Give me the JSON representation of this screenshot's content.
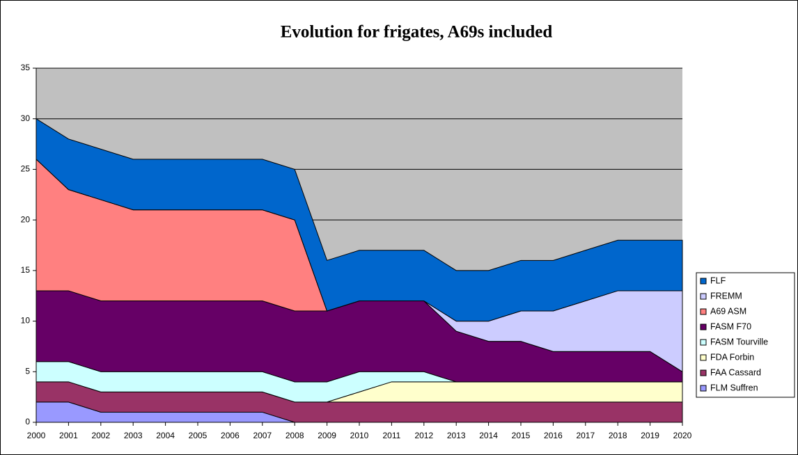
{
  "chart_data": {
    "type": "stacked_area",
    "title": "Evolution for frigates, A69s included",
    "categories": [
      "2000",
      "2001",
      "2002",
      "2003",
      "2004",
      "2005",
      "2006",
      "2007",
      "2008",
      "2009",
      "2010",
      "2011",
      "2012",
      "2013",
      "2014",
      "2015",
      "2016",
      "2017",
      "2018",
      "2019",
      "2020"
    ],
    "series": [
      {
        "name": "FLM Suffren",
        "color": "#9999ff",
        "values": [
          2,
          2,
          1,
          1,
          1,
          1,
          1,
          1,
          0,
          0,
          0,
          0,
          0,
          0,
          0,
          0,
          0,
          0,
          0,
          0,
          0
        ]
      },
      {
        "name": "FAA Cassard",
        "color": "#993366",
        "values": [
          2,
          2,
          2,
          2,
          2,
          2,
          2,
          2,
          2,
          2,
          2,
          2,
          2,
          2,
          2,
          2,
          2,
          2,
          2,
          2,
          2
        ]
      },
      {
        "name": "FDA Forbin",
        "color": "#ffffcc",
        "values": [
          0,
          0,
          0,
          0,
          0,
          0,
          0,
          0,
          0,
          0,
          1,
          2,
          2,
          2,
          2,
          2,
          2,
          2,
          2,
          2,
          2
        ]
      },
      {
        "name": "FASM Tourville",
        "color": "#ccffff",
        "values": [
          2,
          2,
          2,
          2,
          2,
          2,
          2,
          2,
          2,
          2,
          2,
          1,
          1,
          0,
          0,
          0,
          0,
          0,
          0,
          0,
          0
        ]
      },
      {
        "name": "FASM F70",
        "color": "#660066",
        "values": [
          7,
          7,
          7,
          7,
          7,
          7,
          7,
          7,
          7,
          7,
          7,
          7,
          7,
          5,
          4,
          4,
          3,
          3,
          3,
          3,
          1
        ]
      },
      {
        "name": "A69 ASM",
        "color": "#ff8080",
        "values": [
          13,
          10,
          10,
          9,
          9,
          9,
          9,
          9,
          9,
          0,
          0,
          0,
          0,
          0,
          0,
          0,
          0,
          0,
          0,
          0,
          0
        ]
      },
      {
        "name": "FREMM",
        "color": "#ccccff",
        "values": [
          0,
          0,
          0,
          0,
          0,
          0,
          0,
          0,
          0,
          0,
          0,
          0,
          0,
          1,
          2,
          3,
          4,
          5,
          6,
          6,
          8
        ]
      },
      {
        "name": "FLF",
        "color": "#0066cc",
        "values": [
          4,
          5,
          5,
          5,
          5,
          5,
          5,
          5,
          5,
          5,
          5,
          5,
          5,
          5,
          5,
          5,
          5,
          5,
          5,
          5,
          5
        ]
      }
    ],
    "ylim": [
      0,
      35
    ],
    "yticks": [
      0,
      5,
      10,
      15,
      20,
      25,
      30,
      35
    ],
    "grid": true,
    "plot_background": "#c0c0c0",
    "legend": "right"
  }
}
